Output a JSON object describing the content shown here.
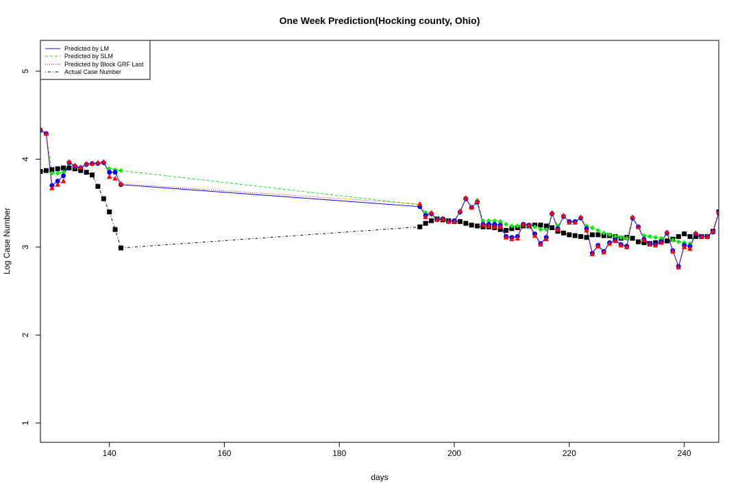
{
  "chart_data": {
    "type": "line",
    "title": "One Week Prediction(Hocking county, Ohio)",
    "xlabel": "days",
    "ylabel": "Log Case Number",
    "xlim": [
      128,
      246
    ],
    "ylim": [
      0.78,
      5.35
    ],
    "x_ticks": [
      140,
      160,
      180,
      200,
      220,
      240
    ],
    "y_ticks": [
      1,
      2,
      3,
      4,
      5
    ],
    "legend_position": "top-left",
    "series": [
      {
        "name": "Predicted by LM",
        "color": "#0000ff",
        "line_style": "solid",
        "marker": "circle",
        "x": [
          128,
          129,
          130,
          131,
          132,
          133,
          134,
          135,
          136,
          137,
          138,
          139,
          140,
          141,
          142,
          194,
          195,
          196,
          197,
          198,
          199,
          200,
          201,
          202,
          203,
          204,
          205,
          206,
          207,
          208,
          209,
          210,
          211,
          212,
          213,
          214,
          215,
          216,
          217,
          218,
          219,
          220,
          221,
          222,
          223,
          224,
          225,
          226,
          227,
          228,
          229,
          230,
          231,
          232,
          233,
          234,
          235,
          236,
          237,
          238,
          239,
          240,
          241,
          242,
          243,
          244,
          245,
          246
        ],
        "y": [
          4.33,
          4.29,
          3.7,
          3.75,
          3.81,
          3.96,
          3.92,
          3.9,
          3.94,
          3.95,
          3.95,
          3.96,
          3.85,
          3.85,
          3.71,
          3.46,
          3.36,
          3.38,
          3.31,
          3.32,
          3.29,
          3.3,
          3.4,
          3.55,
          3.45,
          3.51,
          3.26,
          3.26,
          3.26,
          3.25,
          3.12,
          3.11,
          3.12,
          3.26,
          3.25,
          3.15,
          3.04,
          3.11,
          3.38,
          3.21,
          3.35,
          3.29,
          3.29,
          3.33,
          3.21,
          2.93,
          3.02,
          2.95,
          3.05,
          3.08,
          3.03,
          3.01,
          3.33,
          3.23,
          3.09,
          3.04,
          3.03,
          3.06,
          3.16,
          2.96,
          2.78,
          3.02,
          3.01,
          3.15,
          3.12,
          3.12,
          3.17,
          3.39
        ]
      },
      {
        "name": "Predicted by SLM",
        "color": "#00ee00",
        "line_style": "dashed",
        "marker": "diamond",
        "x": [
          128,
          129,
          130,
          131,
          132,
          133,
          134,
          135,
          136,
          137,
          138,
          139,
          140,
          141,
          142,
          194,
          195,
          196,
          197,
          198,
          199,
          200,
          201,
          202,
          203,
          204,
          205,
          206,
          207,
          208,
          209,
          210,
          211,
          212,
          213,
          214,
          215,
          216,
          217,
          218,
          219,
          220,
          221,
          222,
          223,
          224,
          225,
          226,
          227,
          228,
          229,
          230,
          231,
          232,
          233,
          234,
          235,
          236,
          237,
          238,
          239,
          240,
          241,
          242,
          243,
          244,
          245,
          246
        ],
        "y": [
          4.32,
          4.29,
          3.84,
          3.84,
          3.85,
          3.95,
          3.91,
          3.9,
          3.93,
          3.94,
          3.95,
          3.96,
          3.89,
          3.88,
          3.87,
          3.48,
          3.39,
          3.37,
          3.32,
          3.33,
          3.3,
          3.3,
          3.39,
          3.56,
          3.45,
          3.53,
          3.3,
          3.3,
          3.3,
          3.29,
          3.26,
          3.24,
          3.24,
          3.25,
          3.24,
          3.23,
          3.2,
          3.2,
          3.37,
          3.24,
          3.34,
          3.29,
          3.28,
          3.33,
          3.24,
          3.22,
          3.19,
          3.16,
          3.14,
          3.12,
          3.11,
          3.1,
          3.32,
          3.23,
          3.13,
          3.12,
          3.11,
          3.1,
          3.15,
          3.08,
          3.06,
          3.05,
          3.04,
          3.16,
          3.12,
          3.12,
          3.18,
          3.39
        ]
      },
      {
        "name": "Predicted by Block GRF Last",
        "color": "#ff0000",
        "line_style": "dotted",
        "marker": "triangle",
        "x": [
          128,
          129,
          130,
          131,
          132,
          133,
          134,
          135,
          136,
          137,
          138,
          139,
          140,
          141,
          142,
          194,
          195,
          196,
          197,
          198,
          199,
          200,
          201,
          202,
          203,
          204,
          205,
          206,
          207,
          208,
          209,
          210,
          211,
          212,
          213,
          214,
          215,
          216,
          217,
          218,
          219,
          220,
          221,
          222,
          223,
          224,
          225,
          226,
          227,
          228,
          229,
          230,
          231,
          232,
          233,
          234,
          235,
          236,
          237,
          238,
          239,
          240,
          241,
          242,
          243,
          244,
          245,
          246
        ],
        "y": [
          4.34,
          4.29,
          3.67,
          3.71,
          3.75,
          3.97,
          3.93,
          3.91,
          3.95,
          3.95,
          3.96,
          3.97,
          3.8,
          3.78,
          3.72,
          3.49,
          3.34,
          3.39,
          3.31,
          3.32,
          3.29,
          3.29,
          3.41,
          3.56,
          3.45,
          3.52,
          3.25,
          3.24,
          3.23,
          3.23,
          3.11,
          3.09,
          3.1,
          3.26,
          3.25,
          3.13,
          3.03,
          3.09,
          3.39,
          3.2,
          3.36,
          3.28,
          3.28,
          3.34,
          3.19,
          2.92,
          3.01,
          2.94,
          3.04,
          3.07,
          3.02,
          3.0,
          3.34,
          3.23,
          3.08,
          3.03,
          3.02,
          3.05,
          3.17,
          2.95,
          2.77,
          3.0,
          2.98,
          3.16,
          3.12,
          3.12,
          3.18,
          3.4
        ]
      },
      {
        "name": "Actual Case Number",
        "color": "#000000",
        "line_style": "dotdash",
        "marker": "square",
        "x": [
          128,
          129,
          130,
          131,
          132,
          133,
          134,
          135,
          136,
          137,
          138,
          139,
          140,
          141,
          142,
          194,
          195,
          196,
          197,
          198,
          199,
          200,
          201,
          202,
          203,
          204,
          205,
          206,
          207,
          208,
          209,
          210,
          211,
          212,
          213,
          214,
          215,
          216,
          217,
          218,
          219,
          220,
          221,
          222,
          223,
          224,
          225,
          226,
          227,
          228,
          229,
          230,
          231,
          232,
          233,
          234,
          235,
          236,
          237,
          238,
          239,
          240,
          241,
          242,
          243,
          244,
          245,
          246
        ],
        "y": [
          3.86,
          3.87,
          3.88,
          3.89,
          3.9,
          3.9,
          3.89,
          3.87,
          3.85,
          3.82,
          3.69,
          3.55,
          3.4,
          3.2,
          2.99,
          3.23,
          3.27,
          3.3,
          3.32,
          3.31,
          3.3,
          3.29,
          3.29,
          3.27,
          3.25,
          3.24,
          3.23,
          3.23,
          3.22,
          3.2,
          3.19,
          3.21,
          3.22,
          3.24,
          3.24,
          3.25,
          3.25,
          3.24,
          3.22,
          3.18,
          3.16,
          3.14,
          3.13,
          3.12,
          3.11,
          3.14,
          3.14,
          3.13,
          3.13,
          3.12,
          3.1,
          3.11,
          3.1,
          3.06,
          3.05,
          3.04,
          3.05,
          3.06,
          3.07,
          3.09,
          3.12,
          3.15,
          3.12,
          3.12,
          3.12,
          3.12,
          3.18,
          3.4
        ]
      }
    ]
  }
}
